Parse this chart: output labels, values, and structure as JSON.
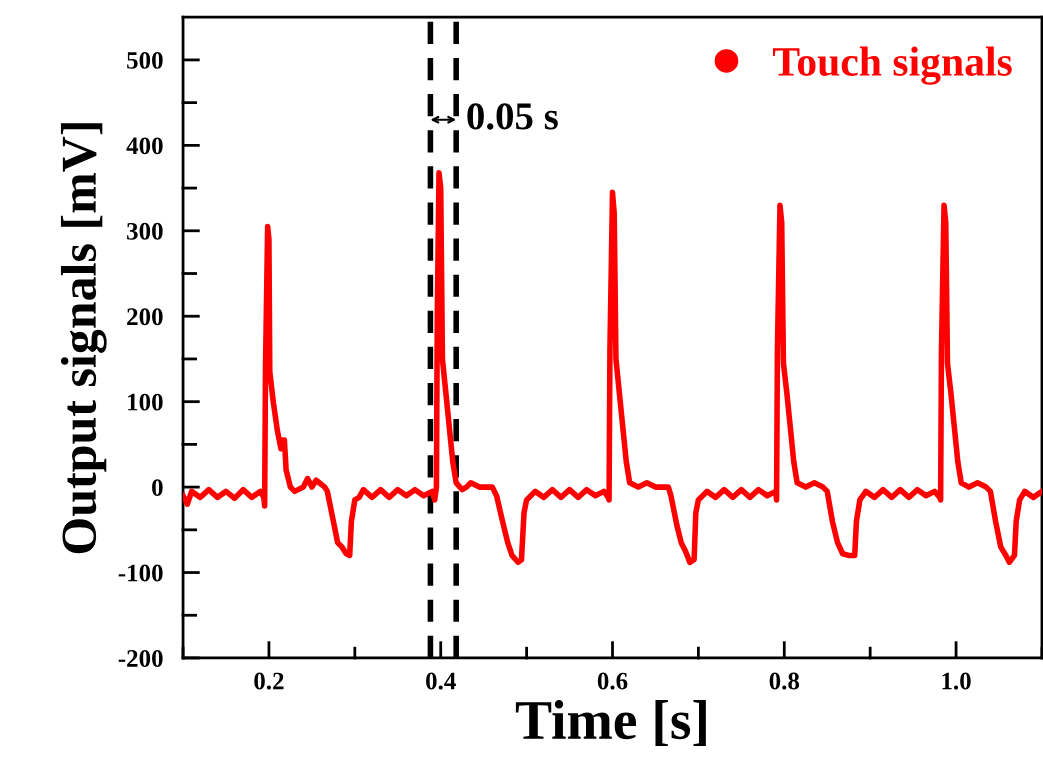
{
  "chart_data": {
    "type": "line",
    "xlabel": "Time [s]",
    "ylabel": "Output signals [mV]",
    "xlim": [
      0.1,
      1.1
    ],
    "ylim": [
      -200,
      550
    ],
    "xticks": [
      {
        "value": 0.1,
        "label": null
      },
      0.2,
      {
        "value": 0.3,
        "label": null
      },
      0.4,
      {
        "value": 0.5,
        "label": null
      },
      0.6,
      {
        "value": 0.7,
        "label": null
      },
      0.8,
      {
        "value": 0.9,
        "label": null
      },
      {
        "value": 1.0,
        "label": "1.0"
      },
      {
        "value": 1.1,
        "label": null
      }
    ],
    "yticks": [
      -200,
      {
        "value": -150,
        "label": null
      },
      -100,
      {
        "value": -50,
        "label": null
      },
      0,
      {
        "value": 50,
        "label": null
      },
      100,
      {
        "value": 150,
        "label": null
      },
      200,
      {
        "value": 250,
        "label": null
      },
      300,
      {
        "value": 350,
        "label": null
      },
      400,
      {
        "value": 450,
        "label": null
      },
      500
    ],
    "grid": false,
    "legend": "top right",
    "line_style": "solid",
    "ref_lines": [
      {
        "axis": "x",
        "value": 0.388,
        "label": null,
        "color": "#000000",
        "line_style": "dashed"
      },
      {
        "axis": "x",
        "value": 0.418,
        "label": null,
        "color": "#000000",
        "line_style": "dashed"
      }
    ],
    "annotations": [
      {
        "text": "0.05 s",
        "x": 0.418,
        "y": 430
      }
    ],
    "series": [
      {
        "name": "Touch signals",
        "color": "#ff0000",
        "x": [
          0.1,
          0.105,
          0.11,
          0.12,
          0.13,
          0.14,
          0.15,
          0.16,
          0.17,
          0.18,
          0.19,
          0.194,
          0.195,
          0.196,
          0.1985,
          0.2,
          0.201,
          0.205,
          0.21,
          0.214,
          0.216,
          0.218,
          0.22,
          0.225,
          0.23,
          0.24,
          0.245,
          0.25,
          0.255,
          0.265,
          0.268,
          0.275,
          0.28,
          0.285,
          0.29,
          0.294,
          0.296,
          0.3,
          0.305,
          0.31,
          0.32,
          0.33,
          0.34,
          0.35,
          0.36,
          0.37,
          0.38,
          0.39,
          0.393,
          0.395,
          0.396,
          0.398,
          0.4,
          0.402,
          0.406,
          0.41,
          0.414,
          0.418,
          0.425,
          0.43,
          0.435,
          0.445,
          0.46,
          0.465,
          0.472,
          0.478,
          0.483,
          0.49,
          0.494,
          0.497,
          0.5,
          0.51,
          0.52,
          0.53,
          0.54,
          0.55,
          0.56,
          0.57,
          0.58,
          0.59,
          0.595,
          0.596,
          0.597,
          0.6,
          0.602,
          0.604,
          0.608,
          0.612,
          0.616,
          0.62,
          0.63,
          0.64,
          0.65,
          0.665,
          0.668,
          0.675,
          0.68,
          0.685,
          0.69,
          0.695,
          0.697,
          0.7,
          0.71,
          0.72,
          0.73,
          0.74,
          0.75,
          0.76,
          0.77,
          0.78,
          0.79,
          0.791,
          0.792,
          0.795,
          0.797,
          0.799,
          0.803,
          0.807,
          0.811,
          0.815,
          0.825,
          0.835,
          0.845,
          0.85,
          0.856,
          0.862,
          0.868,
          0.875,
          0.882,
          0.884,
          0.888,
          0.895,
          0.905,
          0.915,
          0.925,
          0.935,
          0.945,
          0.955,
          0.965,
          0.975,
          0.981,
          0.982,
          0.983,
          0.986,
          0.988,
          0.99,
          0.994,
          0.998,
          1.002,
          1.006,
          1.015,
          1.025,
          1.035,
          1.04,
          1.046,
          1.052,
          1.058,
          1.062,
          1.068,
          1.07,
          1.074,
          1.08,
          1.09,
          1.1
        ],
        "values": [
          -10,
          -20,
          -5,
          -12,
          -3,
          -12,
          -5,
          -13,
          -3,
          -12,
          -5,
          -12,
          -22,
          140,
          305,
          290,
          135,
          100,
          65,
          45,
          55,
          55,
          20,
          0,
          -5,
          0,
          10,
          0,
          8,
          0,
          -5,
          -40,
          -65,
          -70,
          -78,
          -80,
          -40,
          -15,
          -12,
          -3,
          -12,
          -3,
          -12,
          -3,
          -10,
          -3,
          -10,
          -5,
          -15,
          0,
          200,
          368,
          350,
          150,
          110,
          70,
          30,
          5,
          -3,
          0,
          5,
          0,
          0,
          -10,
          -40,
          -65,
          -80,
          -88,
          -85,
          -30,
          -15,
          -5,
          -12,
          -3,
          -12,
          -3,
          -12,
          -3,
          -10,
          -5,
          -12,
          -15,
          160,
          345,
          320,
          150,
          110,
          70,
          30,
          5,
          0,
          5,
          0,
          0,
          -10,
          -45,
          -65,
          -75,
          -88,
          -85,
          -30,
          -15,
          -5,
          -12,
          -3,
          -12,
          -3,
          -12,
          -3,
          -10,
          -5,
          -15,
          160,
          330,
          310,
          145,
          110,
          70,
          30,
          5,
          0,
          5,
          0,
          -5,
          -40,
          -65,
          -78,
          -80,
          -80,
          -40,
          -15,
          -5,
          -12,
          -3,
          -12,
          -3,
          -12,
          -3,
          -10,
          -5,
          -12,
          -15,
          160,
          330,
          310,
          145,
          110,
          70,
          30,
          5,
          0,
          5,
          0,
          -5,
          -40,
          -70,
          -80,
          -88,
          -80,
          -40,
          -15,
          -5,
          -12,
          -5
        ]
      }
    ]
  }
}
